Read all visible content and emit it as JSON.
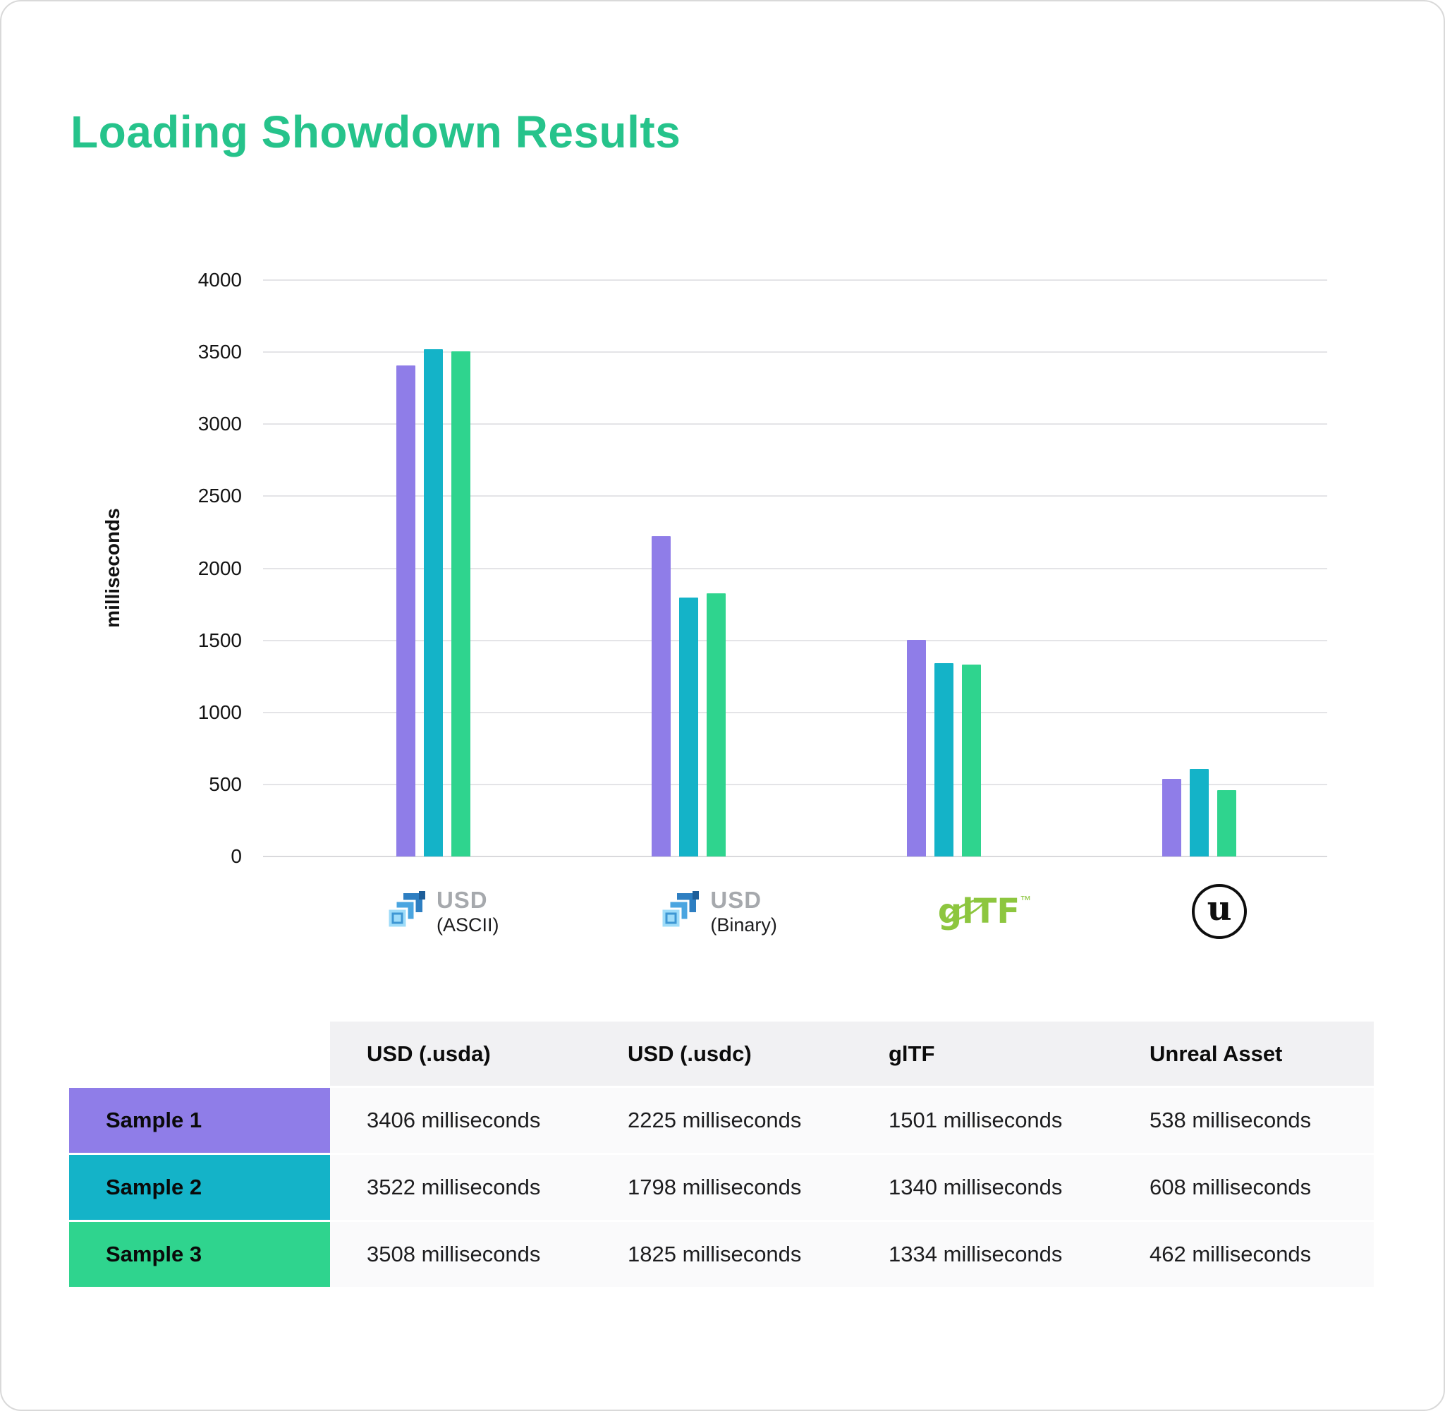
{
  "page": {
    "title": "Loading Showdown Results",
    "title_color": "#26c38b",
    "background": "#ffffff"
  },
  "chart_data": {
    "type": "bar",
    "title": "Loading Showdown Results",
    "xlabel": "",
    "ylabel": "milliseconds",
    "ylim": [
      0,
      4000
    ],
    "yticks": [
      4000,
      3500,
      3000,
      2500,
      2000,
      1500,
      1000,
      500,
      0
    ],
    "grid": true,
    "legend_position": "none",
    "categories": [
      "USD (ASCII)",
      "USD (Binary)",
      "glTF",
      "Unreal Asset"
    ],
    "series": [
      {
        "name": "Sample 1",
        "color": "#8f7de8",
        "values": [
          3406,
          2225,
          1501,
          538
        ]
      },
      {
        "name": "Sample 2",
        "color": "#14b3c8",
        "values": [
          3522,
          1798,
          1340,
          608
        ]
      },
      {
        "name": "Sample 3",
        "color": "#2fd48e",
        "values": [
          3508,
          1825,
          1334,
          462
        ]
      }
    ],
    "x_axis": [
      {
        "icon": "usd-logo",
        "label": "USD",
        "sublabel": "(ASCII)"
      },
      {
        "icon": "usd-logo",
        "label": "USD",
        "sublabel": "(Binary)"
      },
      {
        "icon": "gltf-logo",
        "label": "glTF",
        "tm": "™"
      },
      {
        "icon": "unreal-logo",
        "glyph": "u"
      }
    ]
  },
  "table": {
    "columns": [
      "",
      "USD (.usda)",
      "USD (.usdc)",
      "glTF",
      "Unreal Asset"
    ],
    "rows": [
      {
        "label": "Sample 1",
        "color": "#8f7de8",
        "cells": [
          "3406 milliseconds",
          "2225 milliseconds",
          "1501 milliseconds",
          "538 milliseconds"
        ]
      },
      {
        "label": "Sample 2",
        "color": "#14b3c8",
        "cells": [
          "3522 milliseconds",
          "1798 milliseconds",
          "1340 milliseconds",
          "608 milliseconds"
        ]
      },
      {
        "label": "Sample 3",
        "color": "#2fd48e",
        "cells": [
          "3508 milliseconds",
          "1825 milliseconds",
          "1334 milliseconds",
          "462 milliseconds"
        ]
      }
    ]
  }
}
